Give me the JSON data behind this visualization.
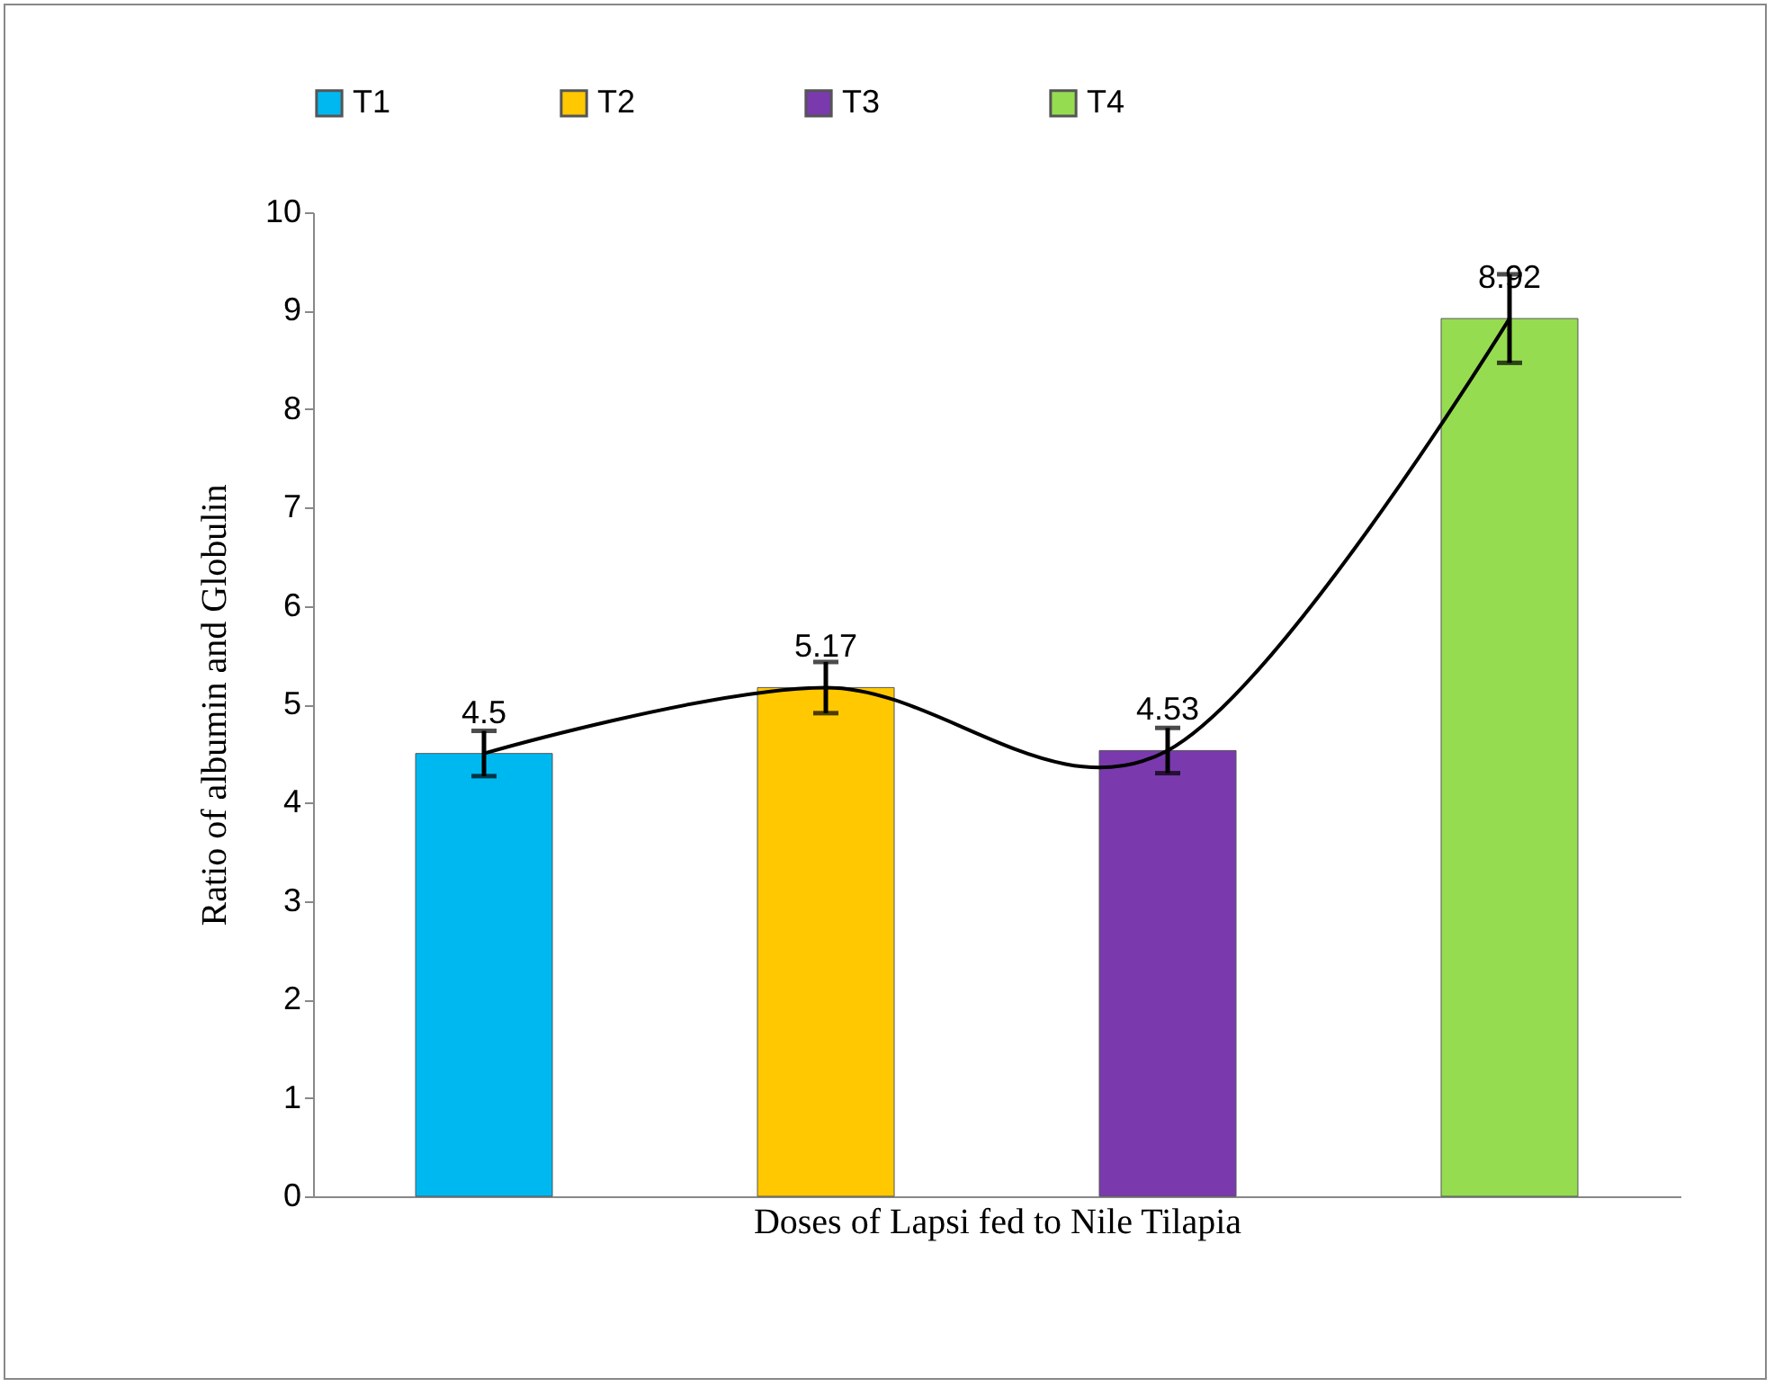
{
  "chart_data": {
    "type": "bar",
    "xlabel": "Doses of Lapsi fed to Nile Tilapia",
    "ylabel": "Ratio of albumin and Globulin",
    "categories": [
      null,
      null,
      null,
      null
    ],
    "series": [
      {
        "name": "T1",
        "color": "#00b8f0",
        "values": [
          4.5,
          null,
          null,
          null
        ],
        "errors": [
          0.23,
          null,
          null,
          null
        ],
        "value_labels": [
          "4.5",
          null,
          null,
          null
        ]
      },
      {
        "name": "T2",
        "color": "#ffc800",
        "values": [
          null,
          5.17,
          null,
          null
        ],
        "errors": [
          null,
          0.26,
          null,
          null
        ],
        "value_labels": [
          null,
          "5.17",
          null,
          null
        ]
      },
      {
        "name": "T3",
        "color": "#7a3aae",
        "values": [
          null,
          null,
          4.53,
          null
        ],
        "errors": [
          null,
          null,
          0.23,
          null
        ],
        "value_labels": [
          null,
          null,
          "4.53",
          null
        ]
      },
      {
        "name": "T4",
        "color": "#96dc50",
        "values": [
          null,
          null,
          null,
          8.92
        ],
        "errors": [
          null,
          null,
          null,
          0.45
        ],
        "value_labels": [
          null,
          null,
          null,
          "8.92"
        ]
      },
      {
        "type": "line",
        "color": "#000000",
        "values": [
          4.5,
          5.17,
          4.53,
          8.92
        ]
      }
    ],
    "ylim": [
      0,
      10
    ],
    "yticks": [
      0,
      1,
      2,
      3,
      4,
      5,
      6,
      7,
      8,
      9,
      10
    ],
    "legend": "top",
    "tick_labels": "y",
    "grid": false
  }
}
